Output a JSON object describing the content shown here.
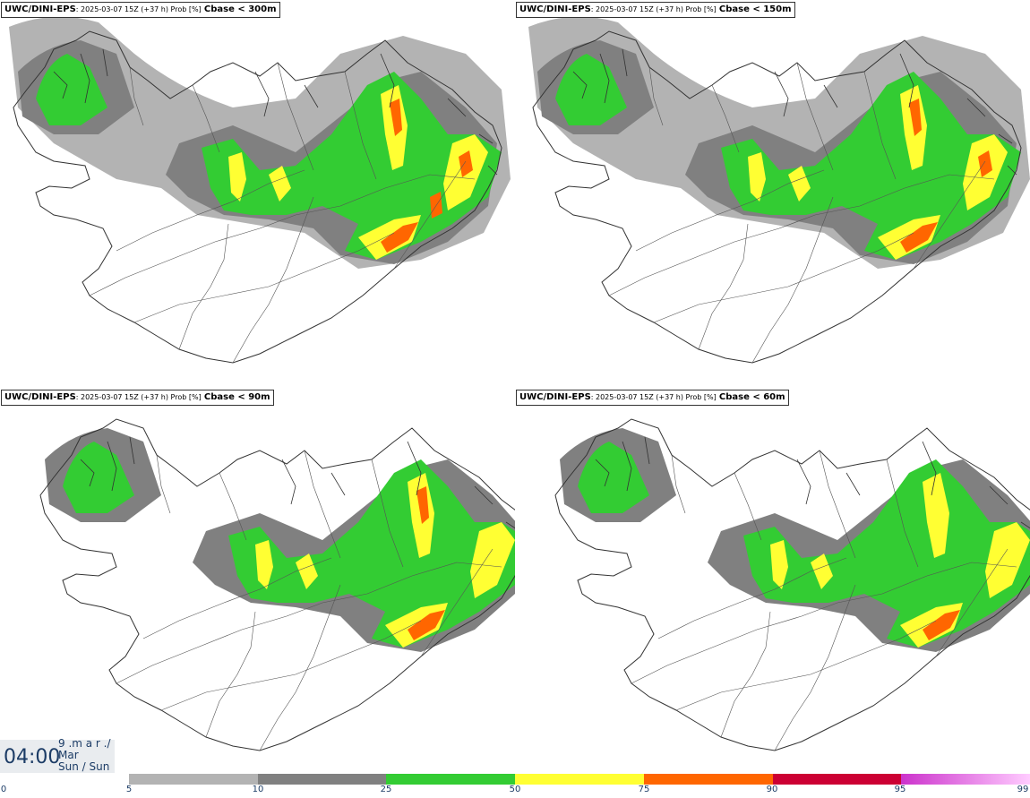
{
  "panels": [
    {
      "model": "UWC/DINI-EPS",
      "meta": ": 2025-03-07 15Z (+37 h) Prob [%]",
      "variable": "Cbase < 300m",
      "level": 4
    },
    {
      "model": "UWC/DINI-EPS",
      "meta": ": 2025-03-07 15Z (+37 h) Prob [%]",
      "variable": "Cbase < 150m",
      "level": 3
    },
    {
      "model": "UWC/DINI-EPS",
      "meta": ": 2025-03-07 15Z (+37 h) Prob [%]",
      "variable": "Cbase < 90m",
      "level": 2
    },
    {
      "model": "UWC/DINI-EPS",
      "meta": ": 2025-03-07 15Z (+37 h) Prob [%]",
      "variable": "Cbase < 60m",
      "level": 1
    }
  ],
  "valid_time": {
    "hour": "04:00",
    "line1": "9 .m a r ./",
    "line2": "Mar",
    "line3": "Sun / Sun"
  },
  "colorbar": {
    "colors": [
      "#b3b3b3",
      "#808080",
      "#33cc33",
      "#ffff33",
      "#ff6600",
      "#cc0033",
      "#cc33cc"
    ],
    "gradient_end": "#ffccff",
    "labels": [
      "0",
      "5",
      "10",
      "25",
      "50",
      "75",
      "90",
      "95",
      "99"
    ]
  }
}
